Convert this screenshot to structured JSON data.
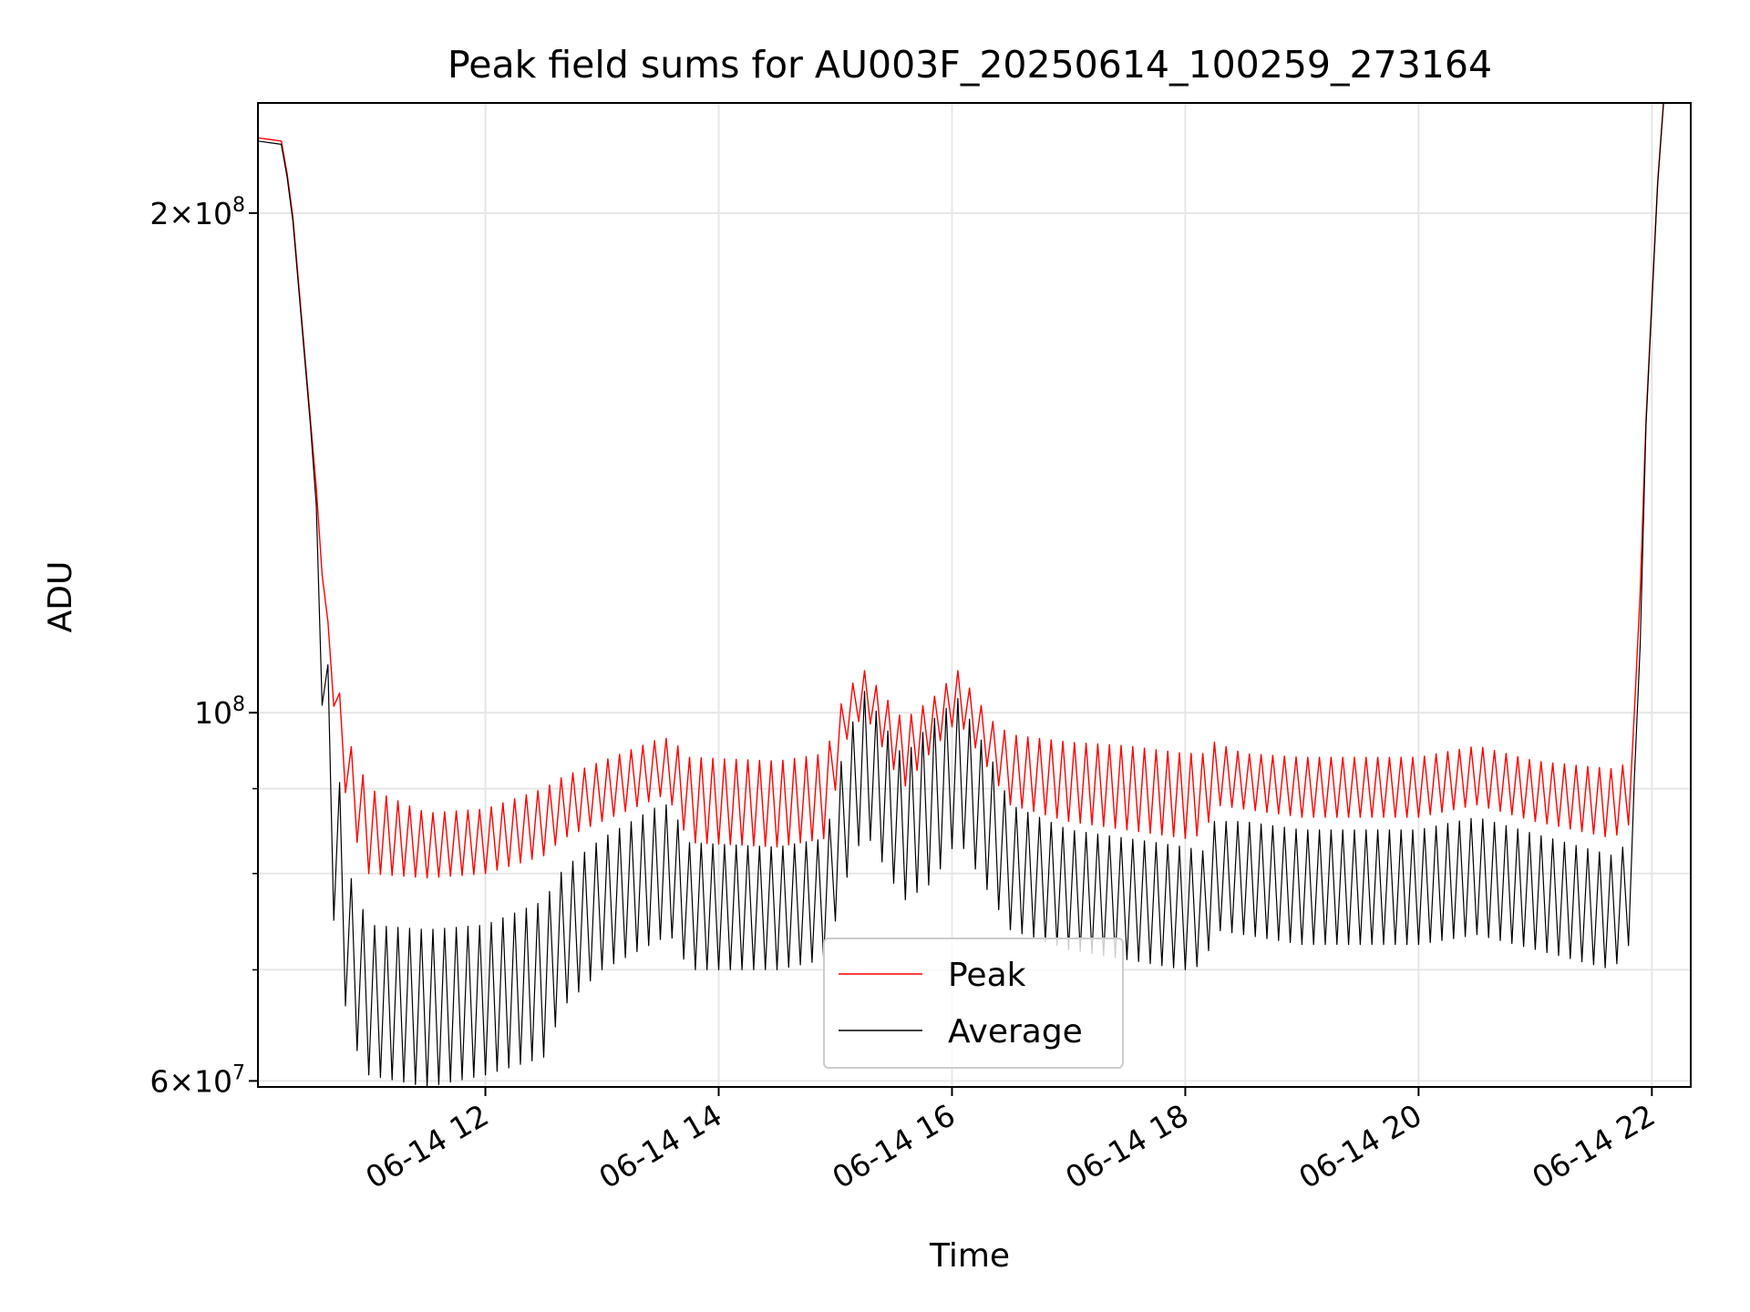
{
  "chart_data": {
    "type": "line",
    "title": "Peak field sums for AU003F_20250614_100259_273164",
    "xlabel": "Time",
    "ylabel": "ADU",
    "y_scale": "log",
    "xlim": [
      "2025-06-14 10:03",
      "2025-06-14 22:20"
    ],
    "ylim": [
      59500000,
      233000000
    ],
    "x_ticks": [
      "06-14 12",
      "06-14 14",
      "06-14 16",
      "06-14 18",
      "06-14 20",
      "06-14 22"
    ],
    "y_ticks": [
      {
        "value": 200000000,
        "mantissa": "2",
        "times": "×",
        "base": "10",
        "exponent": "8"
      },
      {
        "value": 100000000,
        "mantissa": "",
        "times": "",
        "base": "10",
        "exponent": "8"
      },
      {
        "value": 60000000,
        "mantissa": "6",
        "times": "×",
        "base": "10",
        "exponent": "7"
      }
    ],
    "y_minor_ticks": [
      70000000,
      80000000,
      90000000
    ],
    "grid": true,
    "legend_position": "lower center",
    "series": [
      {
        "name": "Peak",
        "color": "#ff0000",
        "x": [
          "2025-06-14 10:03",
          "2025-06-14 10:15",
          "2025-06-14 10:20",
          "2025-06-14 10:30",
          "2025-06-14 10:40",
          "2025-06-14 10:50",
          "2025-06-14 11:00",
          "2025-06-14 11:30",
          "2025-06-14 12:00",
          "2025-06-14 12:30",
          "2025-06-14 12:40",
          "2025-06-14 13:00",
          "2025-06-14 13:30",
          "2025-06-14 13:35",
          "2025-06-14 13:45",
          "2025-06-14 14:30",
          "2025-06-14 14:55",
          "2025-06-14 15:05",
          "2025-06-14 15:15",
          "2025-06-14 15:35",
          "2025-06-14 15:50",
          "2025-06-14 16:03",
          "2025-06-14 16:20",
          "2025-06-14 16:30",
          "2025-06-14 17:00",
          "2025-06-14 17:30",
          "2025-06-14 18:00",
          "2025-06-14 18:10",
          "2025-06-14 18:15",
          "2025-06-14 18:30",
          "2025-06-14 19:00",
          "2025-06-14 20:00",
          "2025-06-14 20:30",
          "2025-06-14 21:00",
          "2025-06-14 21:40",
          "2025-06-14 21:50",
          "2025-06-14 21:57",
          "2025-06-14 22:05",
          "2025-06-14 22:20"
        ],
        "hi": [
          222000000,
          221000000,
          205000000,
          150000000,
          110000000,
          96000000,
          90000000,
          87000000,
          87500000,
          90000000,
          91500000,
          93500000,
          96500000,
          96500000,
          94000000,
          93500000,
          94500000,
          103000000,
          106000000,
          99000000,
          102000000,
          106000000,
          99000000,
          97000000,
          96000000,
          95500000,
          94500000,
          94500000,
          96000000,
          94500000,
          94000000,
          94000000,
          95500000,
          93500000,
          92500000,
          93500000,
          150000000,
          233000000,
          233000000
        ],
        "lo": [
          222000000,
          221000000,
          205000000,
          150000000,
          105000000,
          86000000,
          80000000,
          79500000,
          80000000,
          82000000,
          84000000,
          86000000,
          89000000,
          88500000,
          83500000,
          83000000,
          84000000,
          96000000,
          100000000,
          90000000,
          95000000,
          99000000,
          92000000,
          88000000,
          86000000,
          85000000,
          84000000,
          84500000,
          88000000,
          87500000,
          86500000,
          86500000,
          88000000,
          86000000,
          84000000,
          86000000,
          150000000,
          233000000,
          233000000
        ]
      },
      {
        "name": "Average",
        "color": "#000000",
        "x": [
          "2025-06-14 10:03",
          "2025-06-14 10:15",
          "2025-06-14 10:20",
          "2025-06-14 10:30",
          "2025-06-14 10:40",
          "2025-06-14 10:50",
          "2025-06-14 11:00",
          "2025-06-14 11:30",
          "2025-06-14 12:00",
          "2025-06-14 12:30",
          "2025-06-14 12:40",
          "2025-06-14 13:00",
          "2025-06-14 13:30",
          "2025-06-14 13:35",
          "2025-06-14 13:45",
          "2025-06-14 14:30",
          "2025-06-14 14:55",
          "2025-06-14 15:05",
          "2025-06-14 15:15",
          "2025-06-14 15:35",
          "2025-06-14 15:50",
          "2025-06-14 16:03",
          "2025-06-14 16:20",
          "2025-06-14 16:30",
          "2025-06-14 17:00",
          "2025-06-14 17:30",
          "2025-06-14 18:00",
          "2025-06-14 18:10",
          "2025-06-14 18:15",
          "2025-06-14 18:30",
          "2025-06-14 19:00",
          "2025-06-14 20:00",
          "2025-06-14 20:30",
          "2025-06-14 21:00",
          "2025-06-14 21:40",
          "2025-06-14 21:50",
          "2025-06-14 21:57",
          "2025-06-14 22:05",
          "2025-06-14 22:20"
        ],
        "hi": [
          221000000,
          220000000,
          204000000,
          149000000,
          103000000,
          80000000,
          74500000,
          74000000,
          74500000,
          77000000,
          80500000,
          84000000,
          88000000,
          88000000,
          83500000,
          83000000,
          84000000,
          96000000,
          103000000,
          94000000,
          99000000,
          102000000,
          94000000,
          88000000,
          85000000,
          84000000,
          83000000,
          82500000,
          86000000,
          86000000,
          85000000,
          85000000,
          86500000,
          84500000,
          82000000,
          84000000,
          149000000,
          233000000,
          233000000
        ],
        "lo": [
          221000000,
          220000000,
          204000000,
          149000000,
          78000000,
          64000000,
          60500000,
          59500000,
          60500000,
          62000000,
          66500000,
          70000000,
          73000000,
          73500000,
          70000000,
          70000000,
          71000000,
          79000000,
          85000000,
          77000000,
          79000000,
          84000000,
          77500000,
          74000000,
          72000000,
          71000000,
          70000000,
          70500000,
          74000000,
          73500000,
          72500000,
          72500000,
          73500000,
          72000000,
          70000000,
          73000000,
          149000000,
          233000000,
          233000000
        ]
      }
    ]
  }
}
